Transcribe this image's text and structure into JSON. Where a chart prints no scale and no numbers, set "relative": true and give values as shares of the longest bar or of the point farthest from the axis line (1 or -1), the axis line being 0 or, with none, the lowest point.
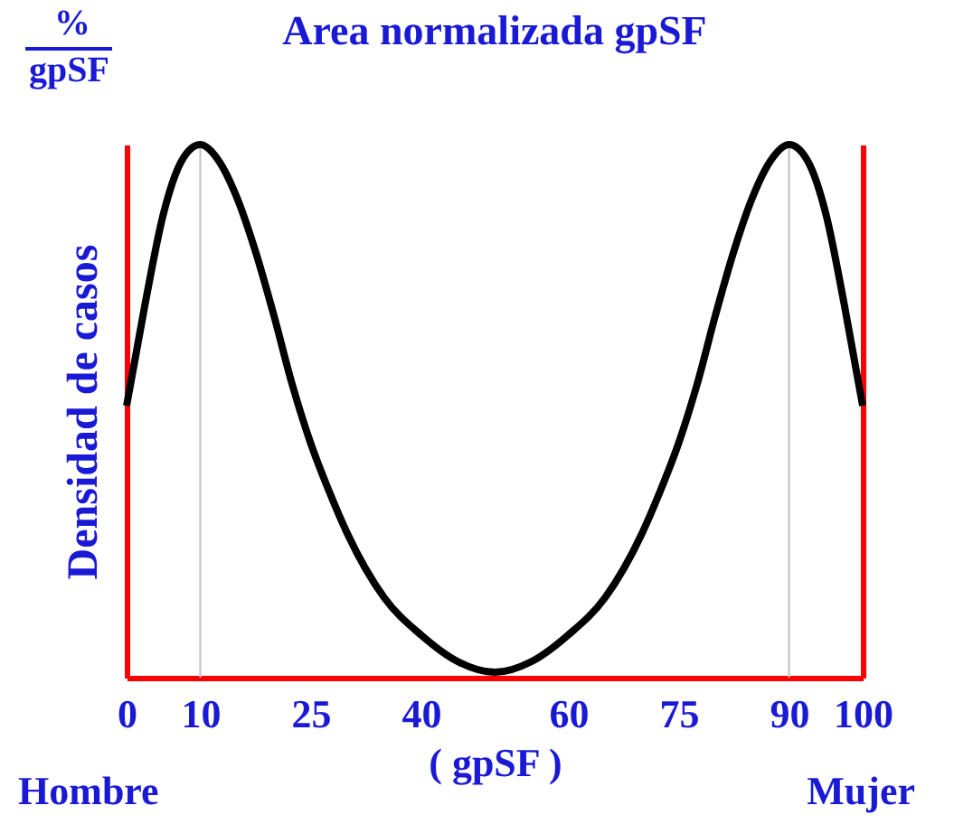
{
  "chart_data": {
    "type": "line",
    "title": "Area normalizada gpSF",
    "xlabel": "( gpSF )",
    "ylabel": "Densidad de casos",
    "relative": true,
    "annotations": [
      "%",
      "gpSF",
      "Hombre",
      "Mujer"
    ],
    "x": [
      0,
      2.5,
      5,
      7.5,
      10,
      12.5,
      15,
      17.5,
      20,
      22.5,
      25,
      27.5,
      30,
      35,
      40,
      45,
      50,
      55,
      60,
      65,
      70,
      72.5,
      75,
      77.5,
      80,
      82.5,
      85,
      87.5,
      90,
      92.5,
      95,
      97.5,
      100
    ],
    "series": [
      {
        "color": "#000000",
        "values": [
          0.51,
          0.7,
          0.87,
          0.97,
          1,
          0.97,
          0.9,
          0.8,
          0.68,
          0.55,
          0.44,
          0.35,
          0.27,
          0.15,
          0.08,
          0.03,
          0.01,
          0.03,
          0.08,
          0.15,
          0.27,
          0.35,
          0.44,
          0.55,
          0.68,
          0.8,
          0.9,
          0.97,
          1,
          0.97,
          0.87,
          0.7,
          0.51
        ]
      }
    ],
    "xlim": [
      0,
      100
    ],
    "xticks": [
      0,
      10,
      25,
      40,
      60,
      75,
      90,
      100
    ],
    "ref_lines": [
      {
        "axis": "x",
        "value": 10,
        "color": "#c0c0c0"
      },
      {
        "axis": "x",
        "value": 90,
        "color": "#c0c0c0"
      }
    ],
    "grid": false,
    "marker": "none",
    "line_style": "solid"
  }
}
